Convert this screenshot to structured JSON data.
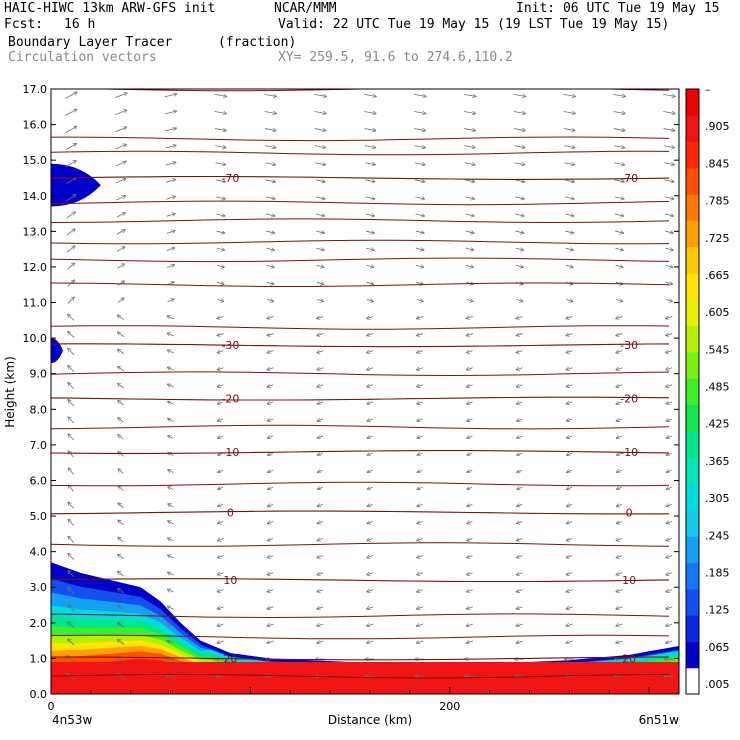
{
  "header": {
    "model": "HAIC-HIWC 13km ARW-GFS init",
    "org": "NCAR/MMM",
    "init": "Init: 06 UTC Tue 19 May 15",
    "fcst_label": "Fcst:",
    "fcst_value": "16 h",
    "valid": "Valid: 22 UTC Tue 19 May 15 (19 LST Tue 19 May 15)",
    "field": "Boundary Layer Tracer",
    "units": "(fraction)",
    "overlay": "Circulation vectors",
    "xy": "XY= 259.5, 91.6 to 274.6,110.2"
  },
  "colors": {
    "contour": "#7a1010",
    "vector": "#6e6e6e",
    "scale": [
      "#ffffff",
      "#0000c8",
      "#0a28dc",
      "#1450f0",
      "#1478f5",
      "#14a0f5",
      "#14c8f0",
      "#00dcdc",
      "#00e6b4",
      "#00e68c",
      "#14e650",
      "#3cf028",
      "#78f014",
      "#b4f000",
      "#e6f000",
      "#ffe600",
      "#ffc800",
      "#ffa000",
      "#ff7800",
      "#ff5000",
      "#ff2800",
      "#f01414",
      "#f00000"
    ]
  },
  "chart_data": {
    "type": "heatmap",
    "title": "Boundary Layer Tracer",
    "xlabel": "Distance (km)",
    "ylabel": "Height (km)",
    "xlim": [
      0,
      315
    ],
    "ylim": [
      0,
      17
    ],
    "x_ticks": [
      "0",
      "200"
    ],
    "x_endpoints": [
      "4n53w",
      "6n51w"
    ],
    "y_ticks": [
      "0.0",
      "1.0",
      "2.0",
      "3.0",
      "4.0",
      "5.0",
      "6.0",
      "7.0",
      "8.0",
      "9.0",
      "10.0",
      "11.0",
      "12.0",
      "13.0",
      "14.0",
      "15.0",
      "16.0",
      "17.0"
    ],
    "colorbar_labels": [
      ".005",
      ".065",
      ".125",
      ".185",
      ".245",
      ".305",
      ".365",
      ".425",
      ".485",
      ".545",
      ".605",
      ".665",
      ".725",
      ".785",
      ".845",
      ".905",
      "–"
    ],
    "isotherms": [
      {
        "label": "-70",
        "height_km": 14.5
      },
      {
        "label": "-30",
        "height_km": 9.8
      },
      {
        "label": "-20",
        "height_km": 8.3
      },
      {
        "label": "-10",
        "height_km": 6.8
      },
      {
        "label": "0",
        "height_km": 5.1
      },
      {
        "label": "10",
        "height_km": 3.2
      },
      {
        "label": "20",
        "height_km": 1.0
      }
    ],
    "extra_contours_km": [
      0.5,
      1.6,
      2.2,
      4.2,
      5.9,
      7.5,
      9.0,
      10.3,
      11.5,
      12.2,
      12.7,
      13.3,
      13.8,
      15.2,
      15.6,
      17.0
    ],
    "boundary_layer_top_km": [
      {
        "x": 0,
        "z": 3.7
      },
      {
        "x": 15,
        "z": 3.4
      },
      {
        "x": 30,
        "z": 3.2
      },
      {
        "x": 45,
        "z": 3.0
      },
      {
        "x": 55,
        "z": 2.6
      },
      {
        "x": 65,
        "z": 2.0
      },
      {
        "x": 75,
        "z": 1.5
      },
      {
        "x": 90,
        "z": 1.15
      },
      {
        "x": 110,
        "z": 1.0
      },
      {
        "x": 150,
        "z": 0.9
      },
      {
        "x": 180,
        "z": 0.8
      },
      {
        "x": 220,
        "z": 0.85
      },
      {
        "x": 260,
        "z": 0.95
      },
      {
        "x": 290,
        "z": 1.1
      },
      {
        "x": 315,
        "z": 1.35
      }
    ],
    "upper_patches": [
      {
        "x": [
          0,
          25
        ],
        "z": [
          13.7,
          14.9
        ]
      },
      {
        "x": [
          0,
          6
        ],
        "z": [
          9.3,
          10.0
        ]
      }
    ]
  }
}
